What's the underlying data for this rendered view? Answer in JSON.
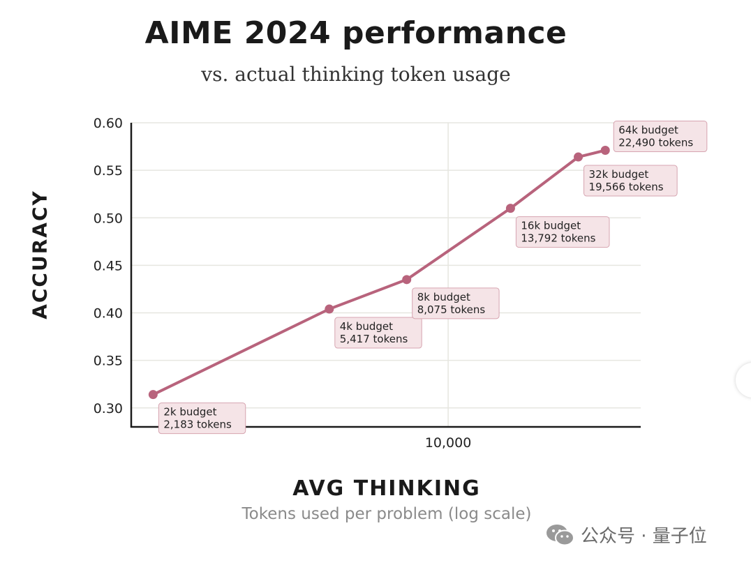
{
  "chart_data": {
    "type": "line",
    "title": "AIME 2024 performance",
    "subtitle": "vs. actual thinking token usage",
    "xlabel": "AVG THINKING",
    "xlabel_sub": "Tokens used per problem (log scale)",
    "ylabel": "ACCURACY",
    "x_scale": "log",
    "xlim": [
      1950,
      27000
    ],
    "ylim": [
      0.28,
      0.6
    ],
    "yticks": [
      "0.60",
      "0.55",
      "0.50",
      "0.45",
      "0.40",
      "0.35",
      "0.30"
    ],
    "ytick_values": [
      0.6,
      0.55,
      0.5,
      0.45,
      0.4,
      0.35,
      0.3
    ],
    "xticks": [
      "10,000"
    ],
    "xtick_values": [
      10000
    ],
    "grid": true,
    "line_color": "#b8637c",
    "label_bg": "#f5e4e7",
    "label_border": "#d6a4b0",
    "points": [
      {
        "x": 2183,
        "y": 0.314,
        "label1": "2k budget",
        "label2": "2,183 tokens"
      },
      {
        "x": 5417,
        "y": 0.404,
        "label1": "4k budget",
        "label2": "5,417 tokens"
      },
      {
        "x": 8075,
        "y": 0.435,
        "label1": "8k budget",
        "label2": "8,075 tokens"
      },
      {
        "x": 13792,
        "y": 0.51,
        "label1": "16k budget",
        "label2": "13,792 tokens"
      },
      {
        "x": 19566,
        "y": 0.564,
        "label1": "32k budget",
        "label2": "19,566 tokens"
      },
      {
        "x": 22490,
        "y": 0.571,
        "label1": "64k budget",
        "label2": "22,490 tokens"
      }
    ]
  },
  "watermark": {
    "text": "公众号 · 量子位",
    "icon": "wechat-icon"
  }
}
